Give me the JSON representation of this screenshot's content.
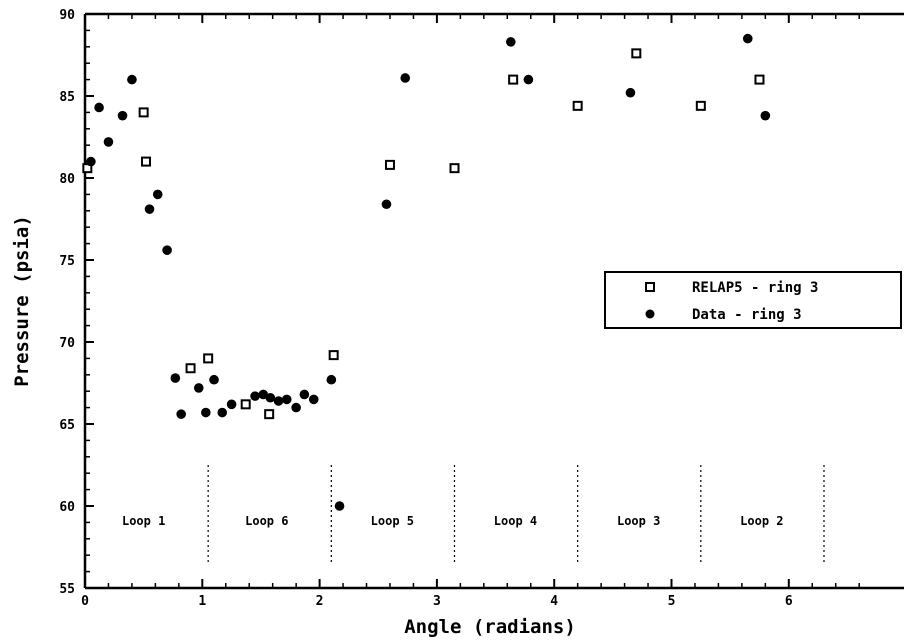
{
  "chart_data": {
    "type": "scatter",
    "title": "",
    "xlabel": "Angle (radians)",
    "ylabel": "Pressure (psia)",
    "xlim": [
      0,
      7
    ],
    "ylim": [
      55,
      90
    ],
    "x_ticks": [
      0,
      1,
      2,
      3,
      4,
      5,
      6
    ],
    "y_ticks": [
      55,
      60,
      65,
      70,
      75,
      80,
      85,
      90
    ],
    "x_tick_labels": [
      "0",
      "1",
      "2",
      "3",
      "4",
      "5",
      "6"
    ],
    "y_tick_labels": [
      "55",
      "60",
      "65",
      "70",
      "75",
      "80",
      "85",
      "90"
    ],
    "grid": false,
    "legend_position": "right",
    "series": [
      {
        "name": "RELAP5 - ring 3",
        "marker": "open-square",
        "points": [
          [
            0.02,
            80.6
          ],
          [
            0.5,
            84.0
          ],
          [
            0.52,
            81.0
          ],
          [
            0.9,
            68.4
          ],
          [
            1.05,
            69.0
          ],
          [
            1.37,
            66.2
          ],
          [
            1.57,
            65.6
          ],
          [
            2.12,
            69.2
          ],
          [
            2.6,
            80.8
          ],
          [
            3.15,
            80.6
          ],
          [
            3.65,
            86.0
          ],
          [
            4.2,
            84.4
          ],
          [
            4.7,
            87.6
          ],
          [
            5.25,
            84.4
          ],
          [
            5.75,
            86.0
          ]
        ]
      },
      {
        "name": "Data - ring 3",
        "marker": "filled-circle",
        "points": [
          [
            0.05,
            81.0
          ],
          [
            0.12,
            84.3
          ],
          [
            0.2,
            82.2
          ],
          [
            0.32,
            83.8
          ],
          [
            0.4,
            86.0
          ],
          [
            0.55,
            78.1
          ],
          [
            0.62,
            79.0
          ],
          [
            0.7,
            75.6
          ],
          [
            0.77,
            67.8
          ],
          [
            0.82,
            65.6
          ],
          [
            0.97,
            67.2
          ],
          [
            1.03,
            65.7
          ],
          [
            1.1,
            67.7
          ],
          [
            1.17,
            65.7
          ],
          [
            1.25,
            66.2
          ],
          [
            1.45,
            66.7
          ],
          [
            1.52,
            66.8
          ],
          [
            1.58,
            66.6
          ],
          [
            1.65,
            66.4
          ],
          [
            1.72,
            66.5
          ],
          [
            1.8,
            66.0
          ],
          [
            1.87,
            66.8
          ],
          [
            1.95,
            66.5
          ],
          [
            2.1,
            67.7
          ],
          [
            2.17,
            60.0
          ],
          [
            2.57,
            78.4
          ],
          [
            2.73,
            86.1
          ],
          [
            3.63,
            88.3
          ],
          [
            3.78,
            86.0
          ],
          [
            4.65,
            85.2
          ],
          [
            5.65,
            88.5
          ],
          [
            5.8,
            83.8
          ]
        ]
      }
    ],
    "annotations": [
      {
        "text": "Loop 1",
        "x": 0.5
      },
      {
        "text": "Loop 6",
        "x": 1.55
      },
      {
        "text": "Loop 5",
        "x": 2.62
      },
      {
        "text": "Loop 4",
        "x": 3.67
      },
      {
        "text": "Loop 3",
        "x": 4.72
      },
      {
        "text": "Loop 2",
        "x": 5.77
      }
    ],
    "loop_dividers": [
      1.05,
      2.1,
      3.15,
      4.2,
      5.25,
      6.3
    ]
  }
}
